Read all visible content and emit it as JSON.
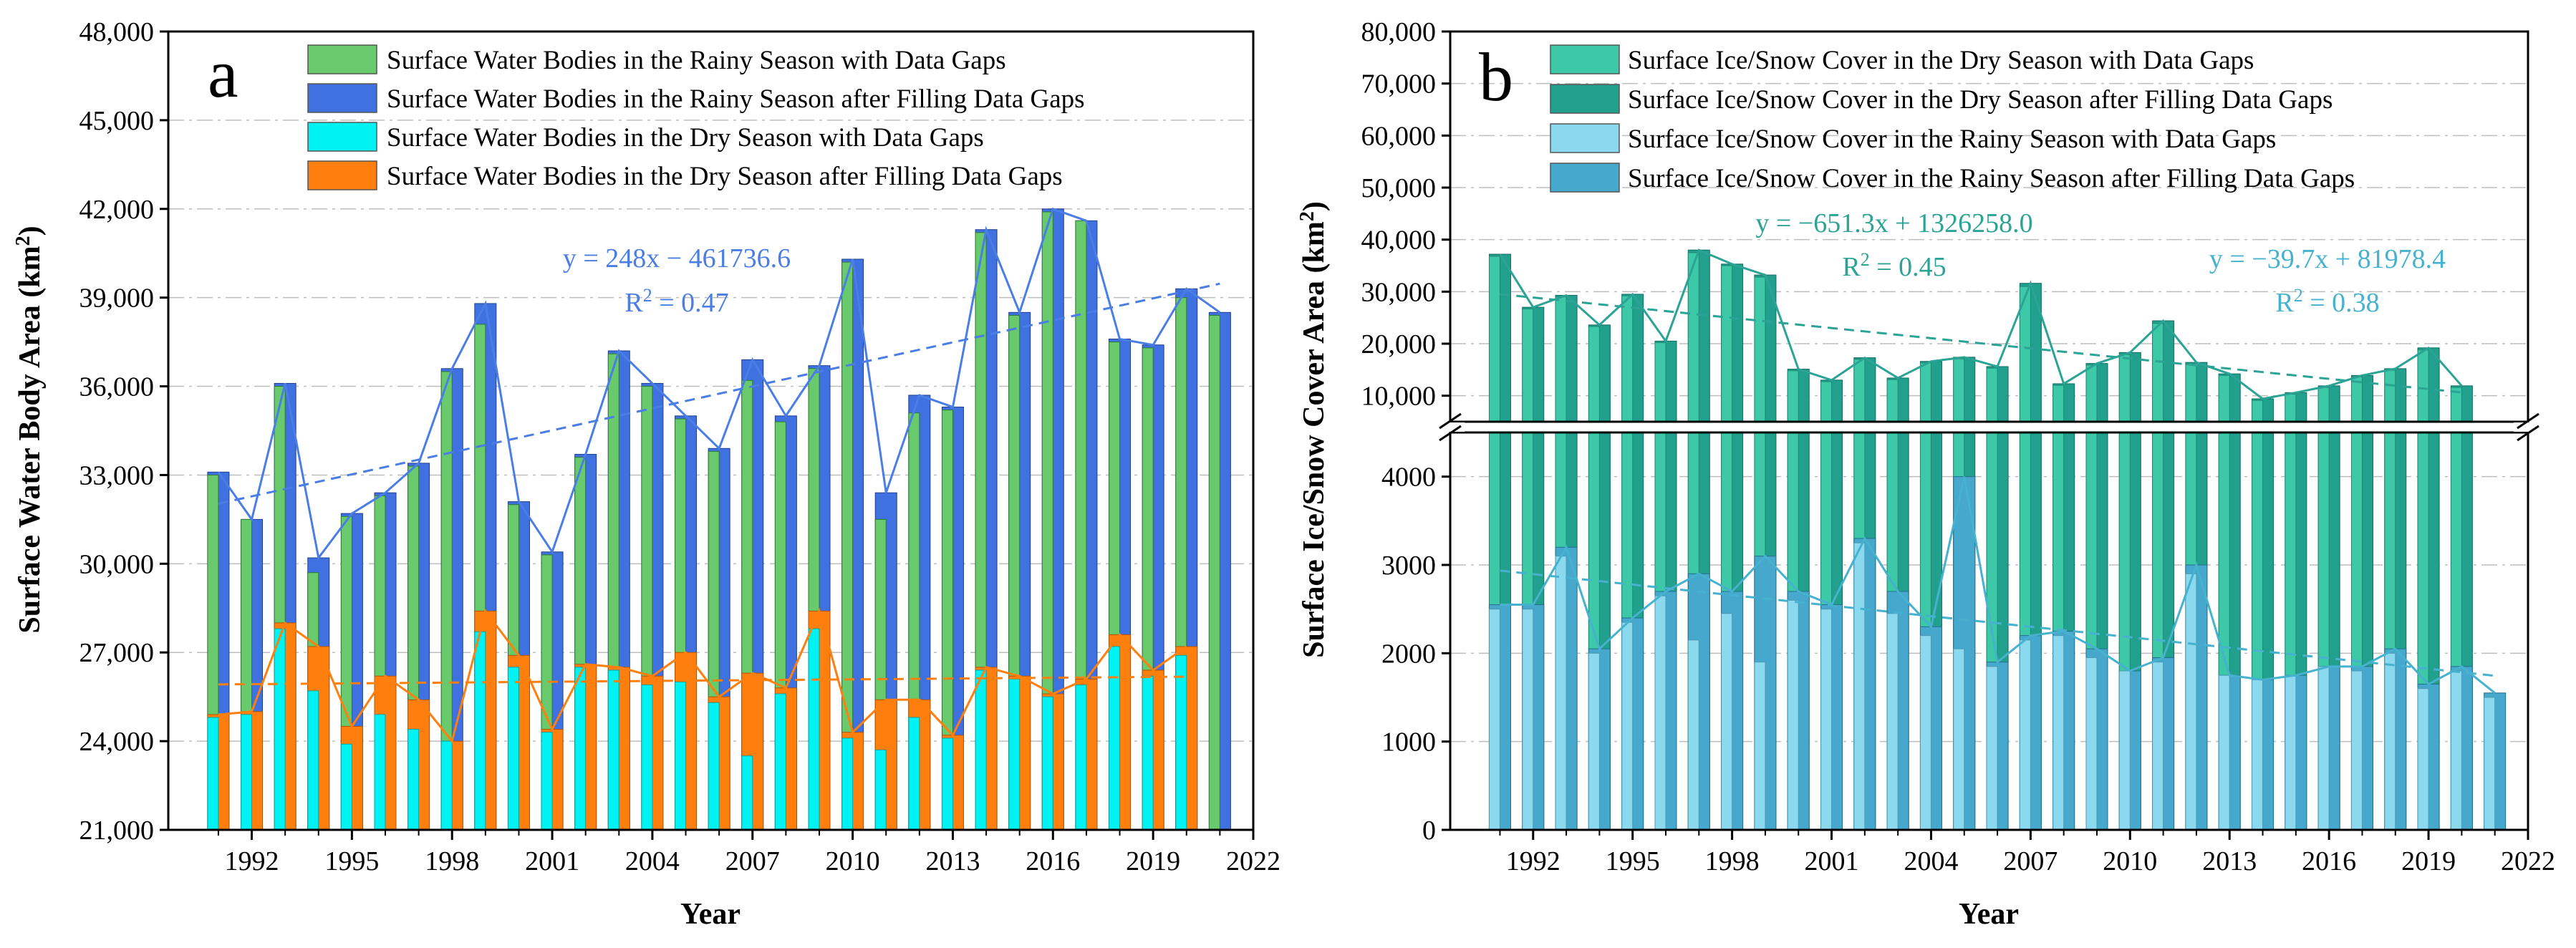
{
  "figure": {
    "colors": {
      "green": "#69c96d",
      "blue": "#3f72e0",
      "cyan": "#00f2f2",
      "orange": "#ff7f0e",
      "trendBlue": "#4a7ee6",
      "ice1": "#3dc8a8",
      "ice2": "#22a08e",
      "ice3": "#8bd9ef",
      "ice4": "#45a8cc",
      "iceTrendDry": "#2ba395",
      "iceTrendRainy": "#46b2cf"
    }
  },
  "chart_data": [
    {
      "type": "bar",
      "panel_label": "a",
      "title": "",
      "xlabel": "Year",
      "ylabel": "Surface Water Body Area (km",
      "ylabel_unit_sup": "2",
      "ylabel_close": ")",
      "xlim": [
        1989.5,
        2022
      ],
      "ylim": [
        21000,
        48000
      ],
      "x_ticks": [
        1992,
        1995,
        1998,
        2001,
        2004,
        2007,
        2010,
        2013,
        2016,
        2019,
        2022
      ],
      "x_tick_labels": [
        "1992",
        "1995",
        "1998",
        "2001",
        "2004",
        "2007",
        "2010",
        "2013",
        "2016",
        "2019",
        "2022"
      ],
      "y_ticks": [
        21000,
        24000,
        27000,
        30000,
        33000,
        36000,
        39000,
        42000,
        45000,
        48000
      ],
      "y_tick_labels": [
        "21,000",
        "24,000",
        "27,000",
        "30,000",
        "33,000",
        "36,000",
        "39,000",
        "42,000",
        "45,000",
        "48,000"
      ],
      "grid": true,
      "legend_position": "top-right",
      "years": [
        1991,
        1992,
        1993,
        1994,
        1995,
        1996,
        1997,
        1998,
        1999,
        2000,
        2001,
        2002,
        2003,
        2004,
        2005,
        2006,
        2007,
        2008,
        2009,
        2010,
        2011,
        2012,
        2013,
        2014,
        2015,
        2016,
        2017,
        2018,
        2019,
        2020,
        2021
      ],
      "series": [
        {
          "name": "Surface Water Bodies in the Rainy Season with Data Gaps",
          "color_key": "green",
          "values": [
            33000,
            31500,
            36000,
            29700,
            31600,
            32300,
            33300,
            36500,
            38100,
            32000,
            30300,
            33600,
            37100,
            36000,
            34900,
            33800,
            36200,
            34800,
            36600,
            40200,
            31500,
            35100,
            35200,
            41200,
            38400,
            41900,
            41600,
            37500,
            37300,
            39000,
            38400
          ]
        },
        {
          "name": "Surface Water Bodies in the Rainy Season after Filling Data Gaps",
          "color_key": "blue",
          "values": [
            33100,
            31500,
            36100,
            30200,
            31700,
            32400,
            33400,
            36600,
            38800,
            32100,
            30400,
            33700,
            37200,
            36100,
            35000,
            33900,
            36900,
            35000,
            36700,
            40300,
            32400,
            35700,
            35300,
            41300,
            38500,
            42000,
            41600,
            37600,
            37400,
            39300,
            38500
          ]
        },
        {
          "name": "Surface Water Bodies in the Dry Season with Data Gaps",
          "color_key": "cyan",
          "values": [
            24800,
            24900,
            27800,
            25700,
            23900,
            24900,
            24400,
            24000,
            27700,
            26500,
            24300,
            26500,
            26400,
            25900,
            26000,
            25300,
            23500,
            25600,
            27800,
            24100,
            23700,
            24800,
            24100,
            26400,
            26100,
            25500,
            25900,
            27200,
            26200,
            26900,
            21000
          ]
        },
        {
          "name": "Surface Water Bodies in the Dry Season after Filling Data Gaps",
          "color_key": "orange",
          "values": [
            24900,
            25000,
            28000,
            27200,
            24500,
            26200,
            25400,
            24000,
            28400,
            26900,
            24400,
            26600,
            26500,
            26200,
            27000,
            25500,
            26300,
            25800,
            28400,
            24300,
            25400,
            25400,
            24200,
            26500,
            26200,
            25600,
            26100,
            27600,
            26400,
            27200,
            null
          ]
        }
      ],
      "trendlines": [
        {
          "equation": "y = 248x − 461736.6",
          "r2_label": "R",
          "r2_sup": "2",
          "r2_value": " = 0.47",
          "slope": 248,
          "intercept": -461736.6,
          "x_range": [
            1991,
            2021
          ],
          "color_key": "trendBlue"
        },
        {
          "equation": "",
          "slope": 9,
          "intercept": 8000,
          "x_range": [
            1991,
            2020
          ],
          "color_key": "orange"
        }
      ]
    },
    {
      "type": "bar",
      "panel_label": "b",
      "title": "",
      "xlabel": "Year",
      "ylabel": "Surface Ice/Snow Cover Area (km",
      "ylabel_unit_sup": "2",
      "ylabel_close": ")",
      "broken_axis": true,
      "xlim": [
        1989.5,
        2022
      ],
      "ylim_lower": [
        0,
        4500
      ],
      "ylim_upper": [
        5000,
        80000
      ],
      "x_ticks": [
        1992,
        1995,
        1998,
        2001,
        2004,
        2007,
        2010,
        2013,
        2016,
        2019,
        2022
      ],
      "x_tick_labels": [
        "1992",
        "1995",
        "1998",
        "2001",
        "2004",
        "2007",
        "2010",
        "2013",
        "2016",
        "2019",
        "2022"
      ],
      "y_ticks_lower": [
        0,
        1000,
        2000,
        3000,
        4000
      ],
      "y_tick_labels_lower": [
        "0",
        "1000",
        "2000",
        "3000",
        "4000"
      ],
      "y_ticks_upper": [
        10000,
        20000,
        30000,
        40000,
        50000,
        60000,
        70000,
        80000
      ],
      "y_tick_labels_upper": [
        "10,000",
        "20,000",
        "30,000",
        "40,000",
        "50,000",
        "60,000",
        "70,000",
        "80,000"
      ],
      "grid": true,
      "legend_position": "top-right",
      "years": [
        1991,
        1992,
        1993,
        1994,
        1995,
        1996,
        1997,
        1998,
        1999,
        2000,
        2001,
        2002,
        2003,
        2004,
        2005,
        2006,
        2007,
        2008,
        2009,
        2010,
        2011,
        2012,
        2013,
        2014,
        2015,
        2016,
        2017,
        2018,
        2019,
        2020,
        2021
      ],
      "series": [
        {
          "name": "Surface Ice/Snow Cover in the Dry Season with Data Gaps",
          "color_key": "ice1",
          "values": [
            36800,
            26700,
            29000,
            23300,
            29200,
            20200,
            37500,
            35000,
            32800,
            14800,
            12700,
            17000,
            13100,
            16300,
            17100,
            15300,
            31000,
            12000,
            15900,
            17900,
            23900,
            16000,
            13900,
            9100,
            10300,
            11600,
            13600,
            14900,
            18800,
            11600,
            null
          ]
        },
        {
          "name": "Surface Ice/Snow Cover in the Dry Season after Filling Data Gaps",
          "color_key": "ice2",
          "values": [
            37200,
            27000,
            29300,
            23600,
            29500,
            20500,
            38000,
            35300,
            33200,
            15100,
            13000,
            17300,
            13400,
            16600,
            17400,
            15600,
            31600,
            12300,
            16200,
            18300,
            24400,
            16400,
            14200,
            9400,
            10600,
            11900,
            13900,
            15200,
            19200,
            11900,
            null
          ]
        },
        {
          "name": "Surface Ice/Snow Cover in the Rainy Season with Data Gaps",
          "color_key": "ice3",
          "values": [
            2500,
            2500,
            3100,
            2000,
            2350,
            2650,
            2150,
            2450,
            1900,
            2600,
            2500,
            3250,
            2450,
            2200,
            2050,
            1850,
            2150,
            2200,
            1950,
            1800,
            1900,
            2900,
            1750,
            1700,
            1750,
            1850,
            1800,
            2000,
            1600,
            1800,
            1500
          ]
        },
        {
          "name": "Surface Ice/Snow Cover in the Rainy Season after Filling Data Gaps",
          "color_key": "ice4",
          "values": [
            2550,
            2550,
            3200,
            2050,
            2400,
            2700,
            2900,
            2700,
            3100,
            2700,
            2550,
            3300,
            2700,
            2300,
            4000,
            1900,
            2200,
            2250,
            2050,
            1800,
            1950,
            3000,
            1750,
            1700,
            1750,
            1850,
            1850,
            2050,
            1650,
            1850,
            1550
          ]
        }
      ],
      "trendlines": [
        {
          "equation": "y = −651.3x + 1326258.0",
          "r2_label": "R",
          "r2_sup": "2",
          "r2_value": " = 0.45",
          "slope": -651.3,
          "intercept": 1326258.0,
          "x_range": [
            1991,
            2020
          ],
          "color_key": "iceTrendDry"
        },
        {
          "equation": "y = −39.7x + 81978.4",
          "r2_label": "R",
          "r2_sup": "2",
          "r2_value": " = 0.38",
          "slope": -39.7,
          "intercept": 81978.4,
          "x_range": [
            1991,
            2021
          ],
          "color_key": "iceTrendRainy"
        }
      ]
    }
  ]
}
